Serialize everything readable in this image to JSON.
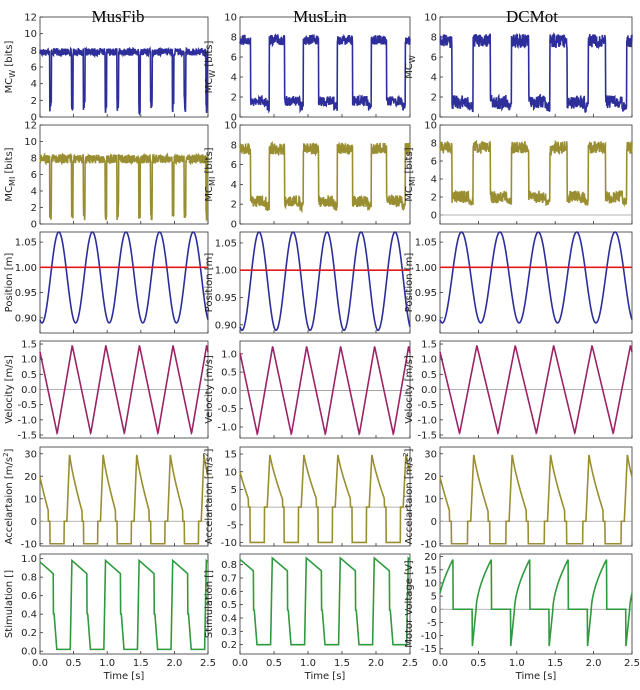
{
  "figure": {
    "columns": [
      "MusFib",
      "MusLin",
      "DCMot"
    ],
    "x_label": "Time [s]"
  },
  "colors": {
    "blue": "#2e2e9a",
    "olive": "#9a8e32",
    "magenta": "#9b2466",
    "green": "#2f9a3e",
    "red": "#e01a1a",
    "zero_line": "#9a9a9a"
  },
  "chart_data": [
    {
      "id": "mcw-musfib",
      "type": "line",
      "column": 0,
      "row": 0,
      "ylabel_main": "MC",
      "ylabel_sub": "W",
      "ylabel_unit": " [bits]",
      "ylim": [
        0,
        12
      ],
      "yticks": [
        0,
        2,
        4,
        6,
        8,
        10,
        12
      ],
      "xlim": [
        0,
        2.5
      ],
      "xticks": [
        0.0,
        0.5,
        1.0,
        1.5,
        2.0,
        2.5
      ],
      "color": "blue",
      "pattern": "dips",
      "base": 7.8,
      "low": 0.4,
      "noise": 0.45
    },
    {
      "id": "mcw-muslin",
      "type": "line",
      "column": 1,
      "row": 0,
      "ylabel_main": "MC",
      "ylabel_sub": "W",
      "ylabel_unit": " [bits]",
      "ylim": [
        0,
        10
      ],
      "yticks": [
        0,
        2,
        4,
        6,
        8,
        10
      ],
      "xlim": [
        0,
        2.5
      ],
      "xticks": [
        0.0,
        0.5,
        1.0,
        1.5,
        2.0,
        2.5
      ],
      "color": "blue",
      "pattern": "square",
      "base": 7.7,
      "low": 1.6,
      "noise": 0.5
    },
    {
      "id": "mcw-dcmot",
      "type": "line",
      "column": 2,
      "row": 0,
      "ylabel_main": "MC",
      "ylabel_sub": "W",
      "ylabel_unit": "",
      "ylim": [
        0,
        10
      ],
      "yticks": [
        0,
        2,
        4,
        6,
        8,
        10
      ],
      "xlim": [
        0,
        2.5
      ],
      "xticks": [
        0.0,
        0.5,
        1.0,
        1.5,
        2.0,
        2.5
      ],
      "color": "blue",
      "pattern": "square",
      "base": 7.6,
      "low": 1.5,
      "noise": 0.7
    },
    {
      "id": "mcmi-musfib",
      "type": "line",
      "column": 0,
      "row": 1,
      "ylabel_main": "MC",
      "ylabel_sub": "MI",
      "ylabel_unit": " [bits]",
      "ylim": [
        0,
        12
      ],
      "yticks": [
        0,
        2,
        4,
        6,
        8,
        10,
        12
      ],
      "xlim": [
        0,
        2.5
      ],
      "xticks": [
        0.0,
        0.5,
        1.0,
        1.5,
        2.0,
        2.5
      ],
      "color": "olive",
      "pattern": "dips",
      "base": 7.9,
      "low": 0.4,
      "noise": 0.55
    },
    {
      "id": "mcmi-muslin",
      "type": "line",
      "column": 1,
      "row": 1,
      "ylabel_main": "MC",
      "ylabel_sub": "MI",
      "ylabel_unit": " [bits]",
      "ylim": [
        0,
        10
      ],
      "yticks": [
        0,
        2,
        4,
        6,
        8,
        10
      ],
      "xlim": [
        0,
        2.5
      ],
      "xticks": [
        0.0,
        0.5,
        1.0,
        1.5,
        2.0,
        2.5
      ],
      "color": "olive",
      "pattern": "square",
      "base": 7.6,
      "low": 2.3,
      "noise": 0.6
    },
    {
      "id": "mcmi-dcmot",
      "type": "line",
      "column": 2,
      "row": 1,
      "ylabel_main": "MC",
      "ylabel_sub": "MI",
      "ylabel_unit": " [bits]",
      "ylim": [
        -1,
        10
      ],
      "yticks": [
        0,
        2,
        4,
        6,
        8,
        10
      ],
      "xlim": [
        0,
        2.5
      ],
      "xticks": [
        0.0,
        0.5,
        1.0,
        1.5,
        2.0,
        2.5
      ],
      "color": "olive",
      "pattern": "square",
      "base": 7.5,
      "low": 2.0,
      "noise": 0.7,
      "zero_line": true
    },
    {
      "id": "pos-musfib",
      "type": "line",
      "column": 0,
      "row": 2,
      "ylabel": "Position [m]",
      "ylim": [
        0.87,
        1.07
      ],
      "yticks": [
        0.9,
        0.95,
        1.0,
        1.05
      ],
      "ytick_labels": [
        "0.90",
        "0.95",
        "1.00",
        "1.05"
      ],
      "xlim": [
        0,
        2.5
      ],
      "xticks": [
        0.0,
        0.5,
        1.0,
        1.5,
        2.0,
        2.5
      ],
      "color": "blue",
      "pattern": "sine",
      "mean": 0.98,
      "amp": 0.09,
      "reference": 1.0
    },
    {
      "id": "pos-muslin",
      "type": "line",
      "column": 1,
      "row": 2,
      "ylabel": "Position [m]",
      "ylim": [
        0.885,
        1.07
      ],
      "yticks": [
        0.9,
        0.95,
        1.0,
        1.05
      ],
      "ytick_labels": [
        "0.90",
        "0.95",
        "1.00",
        "1.05"
      ],
      "xlim": [
        0,
        2.5
      ],
      "xticks": [
        0.0,
        0.5,
        1.0,
        1.5,
        2.0,
        2.5
      ],
      "color": "blue",
      "pattern": "sine",
      "mean": 0.98,
      "amp": 0.09,
      "reference": 1.0
    },
    {
      "id": "pos-dcmot",
      "type": "line",
      "column": 2,
      "row": 2,
      "ylabel": "Position [m]",
      "ylim": [
        0.87,
        1.07
      ],
      "yticks": [
        0.9,
        0.95,
        1.0,
        1.05
      ],
      "ytick_labels": [
        "0.90",
        "0.95",
        "1.00",
        "1.05"
      ],
      "xlim": [
        0,
        2.5
      ],
      "xticks": [
        0.0,
        0.5,
        1.0,
        1.5,
        2.0,
        2.5
      ],
      "color": "blue",
      "pattern": "sine",
      "mean": 0.98,
      "amp": 0.09,
      "reference": 1.0
    },
    {
      "id": "vel-musfib",
      "type": "line",
      "column": 0,
      "row": 3,
      "ylabel": "Velocity [m/s]",
      "ylim": [
        -1.6,
        1.6
      ],
      "yticks": [
        -1.5,
        -1.0,
        -0.5,
        0.0,
        0.5,
        1.0,
        1.5
      ],
      "ytick_labels": [
        "-1.5",
        "-1.0",
        "-0.5",
        "0.0",
        "0.5",
        "1.0",
        "1.5"
      ],
      "xlim": [
        0,
        2.5
      ],
      "xticks": [
        0.0,
        0.5,
        1.0,
        1.5,
        2.0,
        2.5
      ],
      "color": "magenta",
      "pattern": "saw",
      "amp": 1.45,
      "zero_line": true
    },
    {
      "id": "vel-muslin",
      "type": "line",
      "column": 1,
      "row": 3,
      "ylabel": "Velocity [m/s]",
      "ylim": [
        -1.3,
        1.35
      ],
      "yticks": [
        -1.0,
        -0.5,
        0.0,
        0.5,
        1.0
      ],
      "ytick_labels": [
        "-1.0",
        "-0.5",
        "0.0",
        "0.5",
        "1.0"
      ],
      "xlim": [
        0,
        2.5
      ],
      "xticks": [
        0.0,
        0.5,
        1.0,
        1.5,
        2.0,
        2.5
      ],
      "color": "magenta",
      "pattern": "saw",
      "amp": 1.2,
      "zero_line": true
    },
    {
      "id": "vel-dcmot",
      "type": "line",
      "column": 2,
      "row": 3,
      "ylabel": "Velocity [m/s]",
      "ylim": [
        -1.6,
        1.6
      ],
      "yticks": [
        -1.5,
        -1.0,
        -0.5,
        0.0,
        0.5,
        1.0,
        1.5
      ],
      "ytick_labels": [
        "-1.5",
        "-1.0",
        "-0.5",
        "0.0",
        "0.5",
        "1.0",
        "1.5"
      ],
      "xlim": [
        0,
        2.5
      ],
      "xticks": [
        0.0,
        0.5,
        1.0,
        1.5,
        2.0,
        2.5
      ],
      "color": "magenta",
      "pattern": "saw",
      "amp": 1.45,
      "zero_line": true
    },
    {
      "id": "acc-musfib",
      "type": "line",
      "column": 0,
      "row": 4,
      "ylabel_main": "Accelartaion",
      "ylabel_unit": " [m/s",
      "ylabel_sup": "2",
      "ylabel_end": "]",
      "ylim": [
        -11,
        33
      ],
      "yticks": [
        -10,
        0,
        10,
        20,
        30
      ],
      "xlim": [
        0,
        2.5
      ],
      "xticks": [
        0.0,
        0.5,
        1.0,
        1.5,
        2.0,
        2.5
      ],
      "color": "olive",
      "pattern": "pulse",
      "high": 30,
      "low": -10,
      "zero_line": true
    },
    {
      "id": "acc-muslin",
      "type": "line",
      "column": 1,
      "row": 4,
      "ylabel_main": "Accelartaion",
      "ylabel_unit": " [m/s",
      "ylabel_sup": "2",
      "ylabel_end": "]",
      "ylim": [
        -11,
        17
      ],
      "yticks": [
        -10,
        -5,
        0,
        5,
        10,
        15
      ],
      "xlim": [
        0,
        2.5
      ],
      "xticks": [
        0.0,
        0.5,
        1.0,
        1.5,
        2.0,
        2.5
      ],
      "color": "olive",
      "pattern": "pulse",
      "high": 15,
      "low": -10,
      "zero_line": true
    },
    {
      "id": "acc-dcmot",
      "type": "line",
      "column": 2,
      "row": 4,
      "ylabel_main": "Accelartaion",
      "ylabel_unit": " [m/s",
      "ylabel_sup": "2",
      "ylabel_end": "]",
      "ylim": [
        -11,
        33
      ],
      "yticks": [
        -10,
        0,
        10,
        20,
        30
      ],
      "xlim": [
        0,
        2.5
      ],
      "xticks": [
        0.0,
        0.5,
        1.0,
        1.5,
        2.0,
        2.5
      ],
      "color": "olive",
      "pattern": "pulse",
      "high": 30,
      "low": -10,
      "zero_line": true
    },
    {
      "id": "stim-musfib",
      "type": "line",
      "column": 0,
      "row": 5,
      "ylabel": "Stimulation []",
      "ylim": [
        -0.03,
        1.05
      ],
      "yticks": [
        0.0,
        0.2,
        0.4,
        0.6,
        0.8,
        1.0
      ],
      "ytick_labels": [
        "0.0",
        "0.2",
        "0.4",
        "0.6",
        "0.8",
        "1.0"
      ],
      "xlim": [
        0,
        2.5
      ],
      "xticks": [
        0.0,
        0.5,
        1.0,
        1.5,
        2.0,
        2.5
      ],
      "color": "green",
      "pattern": "stim",
      "high": 0.98,
      "low": 0.02
    },
    {
      "id": "stim-muslin",
      "type": "line",
      "column": 1,
      "row": 5,
      "ylabel": "Stimulation []",
      "ylim": [
        0.13,
        0.88
      ],
      "yticks": [
        0.2,
        0.3,
        0.4,
        0.5,
        0.6,
        0.7,
        0.8
      ],
      "ytick_labels": [
        "0.2",
        "0.3",
        "0.4",
        "0.5",
        "0.6",
        "0.7",
        "0.8"
      ],
      "xlim": [
        0,
        2.5
      ],
      "xticks": [
        0.0,
        0.5,
        1.0,
        1.5,
        2.0,
        2.5
      ],
      "color": "green",
      "pattern": "stim",
      "high": 0.85,
      "low": 0.2
    },
    {
      "id": "volt-dcmot",
      "type": "line",
      "column": 2,
      "row": 5,
      "ylabel": "Motor Voltage [V]",
      "ylim": [
        -17,
        21
      ],
      "yticks": [
        -15,
        -10,
        -5,
        0,
        5,
        10,
        15,
        20
      ],
      "ytick_labels": [
        "-15",
        "-10",
        "-5",
        "0",
        "5",
        "10",
        "15",
        "20"
      ],
      "xlim": [
        0,
        2.5
      ],
      "xticks": [
        0.0,
        0.5,
        1.0,
        1.5,
        2.0,
        2.5
      ],
      "color": "green",
      "pattern": "voltage",
      "high": 19,
      "low": -16,
      "zero_line": true
    }
  ]
}
